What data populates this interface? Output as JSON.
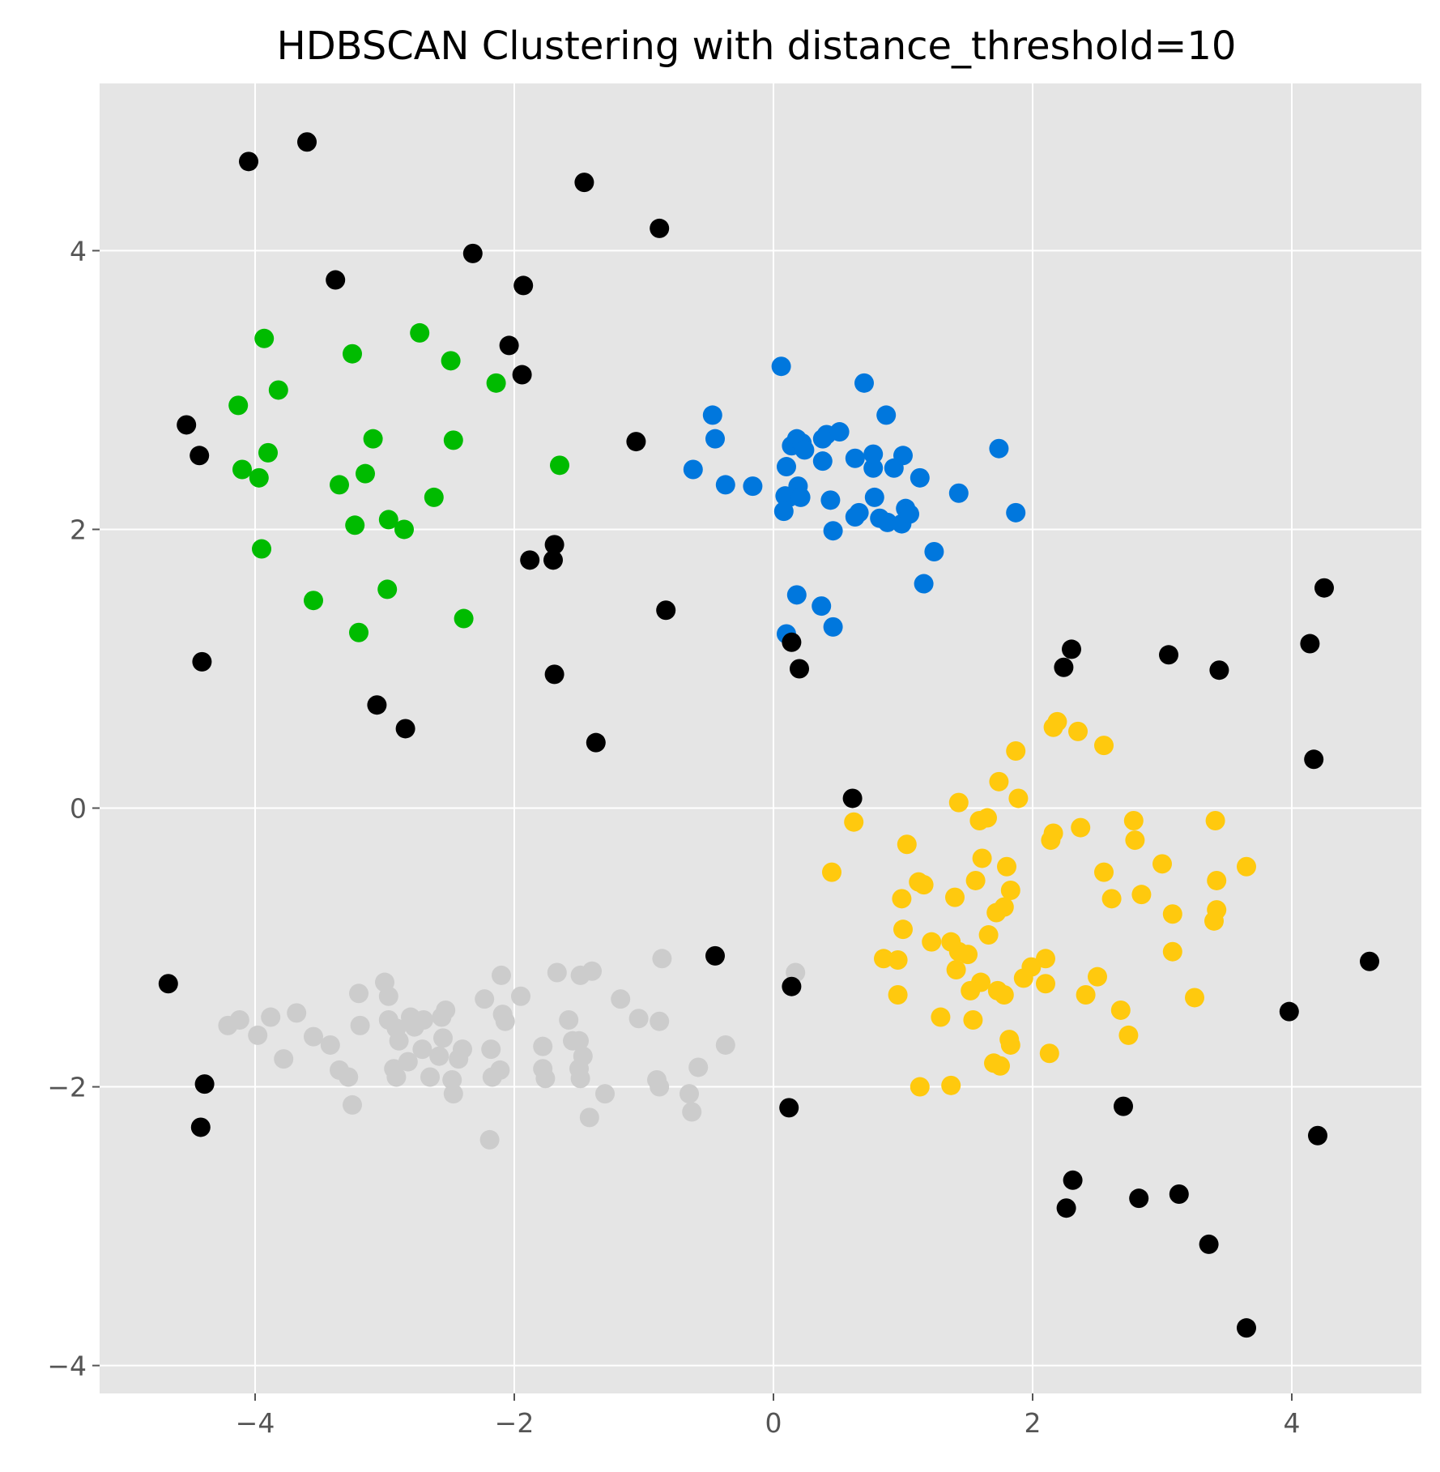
{
  "chart_data": {
    "type": "scatter",
    "title": "HDBSCAN Clustering with distance_threshold=10",
    "xlabel": "",
    "ylabel": "",
    "xlim": [
      -5.2,
      5.0
    ],
    "ylim": [
      -4.2,
      5.2
    ],
    "x_ticks": [
      -4,
      -2,
      0,
      2,
      4
    ],
    "y_ticks": [
      -4,
      -2,
      0,
      2,
      4
    ],
    "x_tick_labels": [
      "−4",
      "−2",
      "0",
      "2",
      "4"
    ],
    "y_tick_labels": [
      "−4",
      "−2",
      "0",
      "2",
      "4"
    ],
    "grid": true,
    "legend": "none",
    "colors": {
      "background": "#e5e5e5",
      "grid": "#ffffff",
      "noise": "#000000",
      "cluster_green": "#00bb00",
      "cluster_blue": "#0077dd",
      "cluster_yellow": "#ffc90e",
      "cluster_gray": "#cccccc"
    },
    "series": [
      {
        "color": "#00bb00",
        "points": [
          [
            -4.13,
            2.89
          ],
          [
            -4.1,
            2.43
          ],
          [
            -3.97,
            2.37
          ],
          [
            -3.93,
            3.37
          ],
          [
            -3.95,
            1.86
          ],
          [
            -3.9,
            2.55
          ],
          [
            -3.82,
            3.0
          ],
          [
            -3.55,
            1.49
          ],
          [
            -3.35,
            2.32
          ],
          [
            -3.25,
            3.26
          ],
          [
            -3.23,
            2.03
          ],
          [
            -3.2,
            1.26
          ],
          [
            -3.15,
            2.4
          ],
          [
            -3.09,
            2.65
          ],
          [
            -2.97,
            2.07
          ],
          [
            -2.98,
            1.57
          ],
          [
            -2.85,
            2.0
          ],
          [
            -2.73,
            3.41
          ],
          [
            -2.62,
            2.23
          ],
          [
            -2.49,
            3.21
          ],
          [
            -2.47,
            2.64
          ],
          [
            -2.39,
            1.36
          ],
          [
            -2.14,
            3.05
          ],
          [
            -1.65,
            2.46
          ]
        ]
      },
      {
        "color": "#0077dd",
        "points": [
          [
            0.06,
            3.17
          ],
          [
            -0.47,
            2.82
          ],
          [
            -0.45,
            2.65
          ],
          [
            -0.62,
            2.43
          ],
          [
            -0.37,
            2.32
          ],
          [
            -0.16,
            2.31
          ],
          [
            0.09,
            2.24
          ],
          [
            0.12,
            2.23
          ],
          [
            0.08,
            2.13
          ],
          [
            0.1,
            2.45
          ],
          [
            0.14,
            2.6
          ],
          [
            0.18,
            2.65
          ],
          [
            0.22,
            2.62
          ],
          [
            0.24,
            2.57
          ],
          [
            0.19,
            2.31
          ],
          [
            0.21,
            2.23
          ],
          [
            0.38,
            2.65
          ],
          [
            0.41,
            2.68
          ],
          [
            0.51,
            2.7
          ],
          [
            0.38,
            2.49
          ],
          [
            0.44,
            2.21
          ],
          [
            0.46,
            1.99
          ],
          [
            0.63,
            2.51
          ],
          [
            0.7,
            3.05
          ],
          [
            0.77,
            2.44
          ],
          [
            0.77,
            2.54
          ],
          [
            0.87,
            2.82
          ],
          [
            0.93,
            2.44
          ],
          [
            1.0,
            2.53
          ],
          [
            0.78,
            2.23
          ],
          [
            0.66,
            2.12
          ],
          [
            0.63,
            2.09
          ],
          [
            0.82,
            2.08
          ],
          [
            0.88,
            2.05
          ],
          [
            0.99,
            2.04
          ],
          [
            1.02,
            2.15
          ],
          [
            1.05,
            2.11
          ],
          [
            1.13,
            2.37
          ],
          [
            1.43,
            2.26
          ],
          [
            1.74,
            2.58
          ],
          [
            1.87,
            2.12
          ],
          [
            1.24,
            1.84
          ],
          [
            1.16,
            1.61
          ],
          [
            0.18,
            1.53
          ],
          [
            0.37,
            1.45
          ],
          [
            0.46,
            1.3
          ],
          [
            0.1,
            1.25
          ]
        ]
      },
      {
        "color": "#ffc90e",
        "points": [
          [
            2.16,
            0.58
          ],
          [
            2.19,
            0.62
          ],
          [
            2.35,
            0.55
          ],
          [
            2.55,
            0.45
          ],
          [
            1.87,
            0.41
          ],
          [
            1.74,
            0.19
          ],
          [
            1.89,
            0.07
          ],
          [
            1.43,
            0.04
          ],
          [
            0.62,
            -0.1
          ],
          [
            1.59,
            -0.09
          ],
          [
            1.65,
            -0.07
          ],
          [
            2.78,
            -0.09
          ],
          [
            3.41,
            -0.09
          ],
          [
            2.37,
            -0.14
          ],
          [
            2.16,
            -0.18
          ],
          [
            2.14,
            -0.23
          ],
          [
            2.79,
            -0.23
          ],
          [
            1.03,
            -0.26
          ],
          [
            1.61,
            -0.36
          ],
          [
            1.8,
            -0.42
          ],
          [
            3.0,
            -0.4
          ],
          [
            3.65,
            -0.42
          ],
          [
            0.45,
            -0.46
          ],
          [
            2.55,
            -0.46
          ],
          [
            1.12,
            -0.53
          ],
          [
            1.16,
            -0.55
          ],
          [
            1.56,
            -0.52
          ],
          [
            3.42,
            -0.52
          ],
          [
            1.83,
            -0.59
          ],
          [
            2.84,
            -0.62
          ],
          [
            1.4,
            -0.64
          ],
          [
            2.61,
            -0.65
          ],
          [
            0.99,
            -0.65
          ],
          [
            1.78,
            -0.71
          ],
          [
            1.72,
            -0.75
          ],
          [
            3.08,
            -0.76
          ],
          [
            3.42,
            -0.73
          ],
          [
            3.4,
            -0.81
          ],
          [
            1.0,
            -0.87
          ],
          [
            1.66,
            -0.91
          ],
          [
            1.22,
            -0.96
          ],
          [
            1.37,
            -0.96
          ],
          [
            1.43,
            -1.03
          ],
          [
            1.5,
            -1.05
          ],
          [
            1.41,
            -1.16
          ],
          [
            0.85,
            -1.08
          ],
          [
            0.96,
            -1.09
          ],
          [
            2.1,
            -1.08
          ],
          [
            3.08,
            -1.03
          ],
          [
            1.99,
            -1.14
          ],
          [
            1.93,
            -1.22
          ],
          [
            2.1,
            -1.26
          ],
          [
            2.5,
            -1.21
          ],
          [
            1.6,
            -1.25
          ],
          [
            1.73,
            -1.31
          ],
          [
            1.78,
            -1.34
          ],
          [
            1.52,
            -1.31
          ],
          [
            2.41,
            -1.34
          ],
          [
            3.25,
            -1.36
          ],
          [
            0.96,
            -1.34
          ],
          [
            2.68,
            -1.45
          ],
          [
            1.29,
            -1.5
          ],
          [
            1.54,
            -1.52
          ],
          [
            2.74,
            -1.63
          ],
          [
            1.82,
            -1.66
          ],
          [
            1.83,
            -1.7
          ],
          [
            2.13,
            -1.76
          ],
          [
            1.7,
            -1.83
          ],
          [
            1.75,
            -1.85
          ],
          [
            1.13,
            -2.0
          ],
          [
            1.37,
            -1.99
          ]
        ]
      },
      {
        "color": "#cccccc",
        "points": [
          [
            -4.21,
            -1.56
          ],
          [
            -4.12,
            -1.52
          ],
          [
            -3.98,
            -1.63
          ],
          [
            -3.88,
            -1.5
          ],
          [
            -3.78,
            -1.8
          ],
          [
            -3.68,
            -1.47
          ],
          [
            -3.55,
            -1.64
          ],
          [
            -3.42,
            -1.7
          ],
          [
            -3.35,
            -1.88
          ],
          [
            -3.28,
            -1.93
          ],
          [
            -3.2,
            -1.33
          ],
          [
            -3.25,
            -2.13
          ],
          [
            -3.19,
            -1.56
          ],
          [
            -3.0,
            -1.25
          ],
          [
            -2.97,
            -1.35
          ],
          [
            -2.97,
            -1.52
          ],
          [
            -2.91,
            -1.58
          ],
          [
            -2.89,
            -1.67
          ],
          [
            -2.93,
            -1.87
          ],
          [
            -2.91,
            -1.93
          ],
          [
            -2.82,
            -1.82
          ],
          [
            -2.8,
            -1.5
          ],
          [
            -2.77,
            -1.57
          ],
          [
            -2.7,
            -1.52
          ],
          [
            -2.71,
            -1.73
          ],
          [
            -2.65,
            -1.93
          ],
          [
            -2.58,
            -1.78
          ],
          [
            -2.56,
            -1.5
          ],
          [
            -2.53,
            -1.45
          ],
          [
            -2.55,
            -1.65
          ],
          [
            -2.48,
            -1.95
          ],
          [
            -2.47,
            -2.05
          ],
          [
            -2.43,
            -1.8
          ],
          [
            -2.4,
            -1.73
          ],
          [
            -2.23,
            -1.37
          ],
          [
            -2.18,
            -1.73
          ],
          [
            -2.17,
            -1.93
          ],
          [
            -2.11,
            -1.88
          ],
          [
            -2.19,
            -2.38
          ],
          [
            -2.1,
            -1.2
          ],
          [
            -2.09,
            -1.48
          ],
          [
            -2.07,
            -1.53
          ],
          [
            -1.95,
            -1.35
          ],
          [
            -1.78,
            -1.71
          ],
          [
            -1.78,
            -1.87
          ],
          [
            -1.76,
            -1.94
          ],
          [
            -1.67,
            -1.18
          ],
          [
            -1.58,
            -1.52
          ],
          [
            -1.55,
            -1.67
          ],
          [
            -1.5,
            -1.67
          ],
          [
            -1.5,
            -1.87
          ],
          [
            -1.49,
            -1.94
          ],
          [
            -1.47,
            -1.78
          ],
          [
            -1.49,
            -1.2
          ],
          [
            -1.4,
            -1.17
          ],
          [
            -1.42,
            -2.22
          ],
          [
            -1.3,
            -2.05
          ],
          [
            -1.18,
            -1.37
          ],
          [
            -1.04,
            -1.51
          ],
          [
            -0.88,
            -1.53
          ],
          [
            -0.9,
            -1.95
          ],
          [
            -0.88,
            -2.0
          ],
          [
            -0.86,
            -1.08
          ],
          [
            -0.65,
            -2.05
          ],
          [
            -0.63,
            -2.18
          ],
          [
            -0.58,
            -1.86
          ],
          [
            -0.37,
            -1.7
          ],
          [
            0.17,
            -1.18
          ]
        ]
      },
      {
        "color": "#000000",
        "points": [
          [
            -3.6,
            4.78
          ],
          [
            -4.05,
            4.64
          ],
          [
            -1.46,
            4.49
          ],
          [
            -0.88,
            4.16
          ],
          [
            -2.32,
            3.98
          ],
          [
            -3.38,
            3.79
          ],
          [
            -1.93,
            3.75
          ],
          [
            -2.04,
            3.32
          ],
          [
            -1.94,
            3.11
          ],
          [
            -4.53,
            2.75
          ],
          [
            -4.43,
            2.53
          ],
          [
            -1.06,
            2.63
          ],
          [
            -1.69,
            1.89
          ],
          [
            -1.88,
            1.78
          ],
          [
            -1.7,
            1.78
          ],
          [
            -0.83,
            1.42
          ],
          [
            -4.41,
            1.05
          ],
          [
            -1.69,
            0.96
          ],
          [
            -3.06,
            0.74
          ],
          [
            -2.84,
            0.57
          ],
          [
            -1.37,
            0.47
          ],
          [
            0.14,
            1.19
          ],
          [
            0.2,
            1.0
          ],
          [
            2.3,
            1.14
          ],
          [
            2.24,
            1.01
          ],
          [
            3.05,
            1.1
          ],
          [
            3.44,
            0.99
          ],
          [
            4.14,
            1.18
          ],
          [
            4.25,
            1.58
          ],
          [
            4.17,
            0.35
          ],
          [
            0.61,
            0.07
          ],
          [
            -0.45,
            -1.06
          ],
          [
            0.14,
            -1.28
          ],
          [
            4.6,
            -1.1
          ],
          [
            -4.67,
            -1.26
          ],
          [
            3.98,
            -1.46
          ],
          [
            -4.39,
            -1.98
          ],
          [
            -4.42,
            -2.29
          ],
          [
            2.7,
            -2.14
          ],
          [
            0.12,
            -2.15
          ],
          [
            4.2,
            -2.35
          ],
          [
            2.31,
            -2.67
          ],
          [
            2.26,
            -2.87
          ],
          [
            2.82,
            -2.8
          ],
          [
            3.13,
            -2.77
          ],
          [
            3.36,
            -3.13
          ],
          [
            3.65,
            -3.73
          ]
        ]
      }
    ]
  }
}
